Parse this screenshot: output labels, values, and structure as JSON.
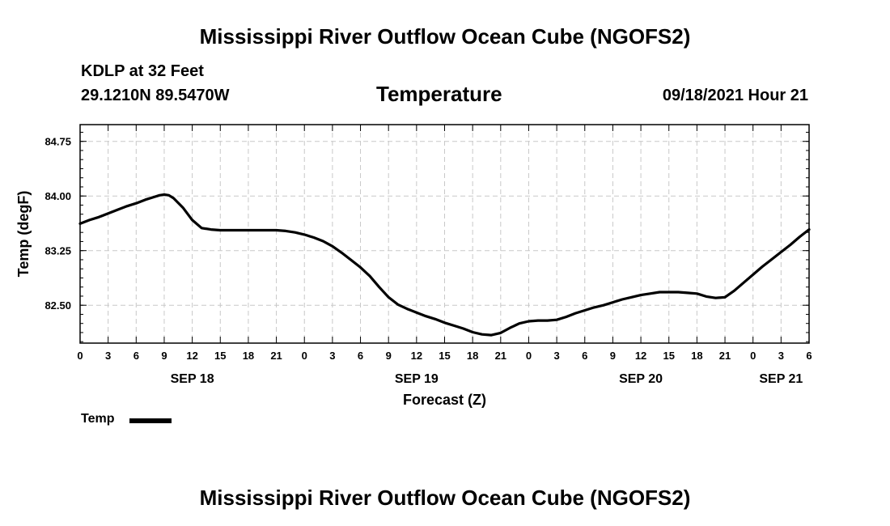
{
  "header": {
    "title": "Mississippi River Outflow Ocean Cube (NGOFS2)",
    "station": "KDLP at 32 Feet",
    "coords": "29.1210N  89.5470W",
    "parameter": "Temperature",
    "datetime": "09/18/2021 Hour 21"
  },
  "footer": {
    "title": "Mississippi River Outflow Ocean Cube (NGOFS2)"
  },
  "legend": {
    "label": "Temp"
  },
  "chart_data": {
    "type": "line",
    "title": "Temperature",
    "xlabel": "Forecast (Z)",
    "ylabel": "Temp (degF)",
    "x_unit": "forecast hour from SEP 18 00Z",
    "xlim": [
      0,
      78
    ],
    "ylim": [
      81.98,
      84.98
    ],
    "x_ticks": [
      0,
      3,
      6,
      9,
      12,
      15,
      18,
      21,
      24,
      27,
      30,
      33,
      36,
      39,
      42,
      45,
      48,
      51,
      54,
      57,
      60,
      63,
      66,
      69,
      72,
      75,
      78
    ],
    "x_tick_labels": [
      "0",
      "3",
      "6",
      "9",
      "12",
      "15",
      "18",
      "21",
      "0",
      "3",
      "6",
      "9",
      "12",
      "15",
      "18",
      "21",
      "0",
      "3",
      "6",
      "9",
      "12",
      "15",
      "18",
      "21",
      "0",
      "3",
      "6"
    ],
    "y_ticks": [
      82.5,
      83.25,
      84.0,
      84.75
    ],
    "y_tick_labels": [
      "82.50",
      "83.25",
      "84.00",
      "84.75"
    ],
    "y_minor_step": 0.125,
    "day_labels": [
      {
        "x": 12,
        "label": "SEP 18"
      },
      {
        "x": 36,
        "label": "SEP 19"
      },
      {
        "x": 60,
        "label": "SEP 20"
      },
      {
        "x": 75,
        "label": "SEP 21"
      }
    ],
    "grid": true,
    "legend_position": "bottom-left",
    "series": [
      {
        "name": "Temp",
        "x": [
          0,
          1,
          2,
          3,
          4,
          5,
          6,
          7,
          8,
          8.5,
          9,
          9.5,
          10,
          11,
          12,
          13,
          14,
          15,
          16,
          17,
          18,
          19,
          20,
          21,
          22,
          23,
          24,
          25,
          26,
          27,
          28,
          29,
          30,
          31,
          32,
          33,
          34,
          35,
          36,
          37,
          38,
          39,
          40,
          41,
          42,
          43,
          44,
          45,
          46,
          47,
          48,
          49,
          50,
          51,
          52,
          53,
          54,
          55,
          56,
          57,
          58,
          59,
          60,
          61,
          62,
          63,
          64,
          65,
          66,
          67,
          68,
          69,
          70,
          71,
          72,
          73,
          74,
          75,
          76,
          77,
          78
        ],
        "values": [
          83.62,
          83.67,
          83.71,
          83.76,
          83.81,
          83.86,
          83.9,
          83.95,
          83.99,
          84.01,
          84.02,
          84.01,
          83.97,
          83.84,
          83.67,
          83.56,
          83.54,
          83.53,
          83.53,
          83.53,
          83.53,
          83.53,
          83.53,
          83.53,
          83.52,
          83.5,
          83.47,
          83.43,
          83.38,
          83.31,
          83.22,
          83.12,
          83.02,
          82.9,
          82.75,
          82.61,
          82.51,
          82.45,
          82.4,
          82.35,
          82.31,
          82.26,
          82.22,
          82.18,
          82.13,
          82.1,
          82.09,
          82.12,
          82.19,
          82.25,
          82.28,
          82.29,
          82.29,
          82.3,
          82.34,
          82.39,
          82.43,
          82.47,
          82.5,
          82.54,
          82.58,
          82.61,
          82.64,
          82.66,
          82.68,
          82.68,
          82.68,
          82.67,
          82.66,
          82.62,
          82.6,
          82.61,
          82.7,
          82.81,
          82.92,
          83.03,
          83.13,
          83.23,
          83.33,
          83.44,
          83.54
        ]
      }
    ]
  }
}
